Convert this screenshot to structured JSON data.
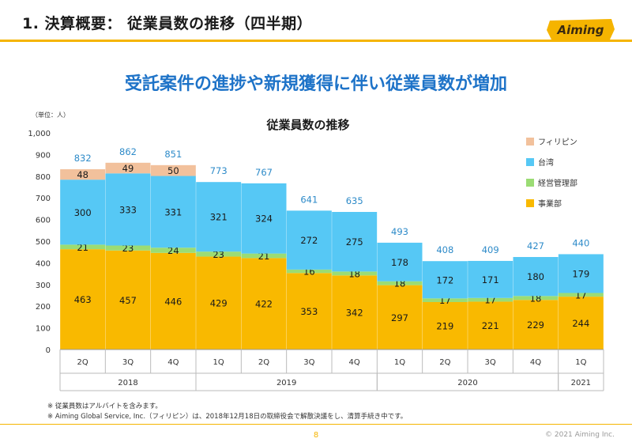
{
  "header": {
    "title": "1. 決算概要： 従業員数の推移（四半期）",
    "logo_text": "Aiming"
  },
  "headline": "受託案件の進捗や新規獲得に伴い従業員数が増加",
  "chart_data": {
    "type": "bar",
    "stacked": true,
    "title": "従業員数の推移",
    "unit_label": "（単位：人）",
    "categories": [
      "2Q",
      "3Q",
      "4Q",
      "1Q",
      "2Q",
      "3Q",
      "4Q",
      "1Q",
      "2Q",
      "3Q",
      "4Q",
      "1Q"
    ],
    "years": [
      {
        "label": "2018",
        "count": 3
      },
      {
        "label": "2019",
        "count": 4
      },
      {
        "label": "2020",
        "count": 4
      },
      {
        "label": "2021",
        "count": 1
      }
    ],
    "series": [
      {
        "name": "事業部",
        "color": "#f9b900",
        "values": [
          463,
          457,
          446,
          429,
          422,
          353,
          342,
          297,
          219,
          221,
          229,
          244
        ]
      },
      {
        "name": "経営管理部",
        "color": "#9bdc74",
        "values": [
          21,
          23,
          24,
          23,
          21,
          16,
          18,
          18,
          17,
          17,
          18,
          17
        ]
      },
      {
        "name": "台湾",
        "color": "#56c8f5",
        "values": [
          300,
          333,
          331,
          321,
          324,
          272,
          275,
          178,
          172,
          171,
          180,
          179
        ]
      },
      {
        "name": "フィリピン",
        "color": "#f2c19c",
        "values": [
          48,
          49,
          50,
          null,
          null,
          null,
          null,
          null,
          null,
          null,
          null,
          null
        ]
      }
    ],
    "totals": [
      832,
      862,
      851,
      773,
      767,
      641,
      635,
      493,
      408,
      409,
      427,
      440
    ],
    "total_color": "#2e8bc9",
    "yticks": [
      "0",
      "100",
      "200",
      "300",
      "400",
      "500",
      "600",
      "700",
      "800",
      "900",
      "1,000"
    ],
    "ylim": [
      0,
      1000
    ],
    "legend_position": "right",
    "grid": false
  },
  "notes": [
    "※ 従業員数はアルバイトを含みます。",
    "※ Aiming Global Service, Inc.（フィリピン）は、2018年12月18日の取締役会で解散決議をし、清算手続き中です。"
  ],
  "footer": {
    "page": "8",
    "copyright": "© 2021 Aiming Inc."
  }
}
